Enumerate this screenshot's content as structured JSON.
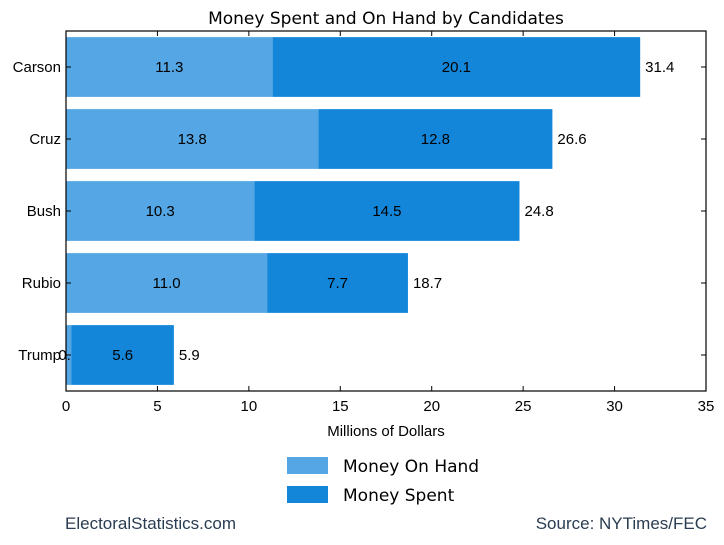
{
  "chart_data": {
    "type": "bar",
    "orientation": "horizontal",
    "stacked": true,
    "title": "Money Spent and On Hand by Candidates",
    "xlabel": "Millions of Dollars",
    "ylabel": "",
    "xlim": [
      0,
      35
    ],
    "xticks": [
      0,
      5,
      10,
      15,
      20,
      25,
      30,
      35
    ],
    "categories": [
      "Carson",
      "Cruz",
      "Bush",
      "Rubio",
      "Trump"
    ],
    "series": [
      {
        "name": "Money On Hand",
        "color": "#55a6e4",
        "values": [
          11.3,
          13.8,
          10.3,
          11.0,
          0.3
        ],
        "labels": [
          "11.3",
          "13.8",
          "10.3",
          "11.0",
          "0.3"
        ]
      },
      {
        "name": "Money Spent",
        "color": "#1386da",
        "values": [
          20.1,
          12.8,
          14.5,
          7.7,
          5.6
        ],
        "labels": [
          "20.1",
          "12.8",
          "14.5",
          "7.7",
          "5.6"
        ]
      }
    ],
    "totals": [
      "31.4",
      "26.6",
      "24.8",
      "18.7",
      "5.9"
    ],
    "grid": false,
    "legend_position": "bottom-center"
  },
  "footer": {
    "left": "ElectoralStatistics.com",
    "right": "Source: NYTimes/FEC"
  }
}
